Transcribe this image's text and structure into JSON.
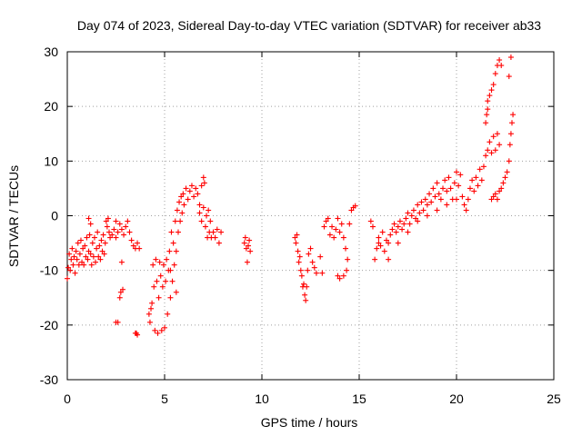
{
  "chart_data": {
    "type": "scatter",
    "title": "Day 074 of 2023, Sidereal Day-to-day VTEC variation (SDTVAR) for receiver ab33",
    "xlabel": "GPS time / hours",
    "ylabel": "SDTVAR / TECUs",
    "xlim": [
      0,
      25
    ],
    "ylim": [
      -30,
      30
    ],
    "xticks": [
      0,
      5,
      10,
      15,
      20,
      25
    ],
    "yticks": [
      -30,
      -20,
      -10,
      0,
      10,
      20,
      30
    ],
    "xtick_labels": [
      "0",
      "5",
      "10",
      "15",
      "20",
      "25"
    ],
    "ytick_labels": [
      "-30",
      "-20",
      "-10",
      "0",
      "10",
      "20",
      "30"
    ],
    "grid": true,
    "marker": "plus",
    "color": "#ff0000",
    "series": [
      {
        "name": "SDTVAR",
        "points": [
          [
            0.0,
            -11.5
          ],
          [
            0.05,
            -9.5
          ],
          [
            0.1,
            -7.0
          ],
          [
            0.15,
            -10.0
          ],
          [
            0.2,
            -8.0
          ],
          [
            0.25,
            -6.0
          ],
          [
            0.3,
            -9.0
          ],
          [
            0.35,
            -7.5
          ],
          [
            0.4,
            -10.5
          ],
          [
            0.45,
            -6.5
          ],
          [
            0.5,
            -8.0
          ],
          [
            0.55,
            -5.0
          ],
          [
            0.6,
            -9.0
          ],
          [
            0.65,
            -7.0
          ],
          [
            0.7,
            -4.5
          ],
          [
            0.75,
            -8.5
          ],
          [
            0.8,
            -6.0
          ],
          [
            0.85,
            -9.0
          ],
          [
            0.9,
            -5.5
          ],
          [
            0.95,
            -7.5
          ],
          [
            1.0,
            -4.0
          ],
          [
            1.05,
            -8.0
          ],
          [
            1.1,
            -6.5
          ],
          [
            1.15,
            -3.5
          ],
          [
            1.2,
            -7.0
          ],
          [
            1.25,
            -9.0
          ],
          [
            1.3,
            -5.0
          ],
          [
            1.35,
            -7.5
          ],
          [
            1.4,
            -4.0
          ],
          [
            1.45,
            -8.5
          ],
          [
            1.5,
            -6.0
          ],
          [
            1.55,
            -3.0
          ],
          [
            1.6,
            -7.5
          ],
          [
            1.65,
            -5.5
          ],
          [
            1.7,
            -8.0
          ],
          [
            1.75,
            -4.5
          ],
          [
            1.8,
            -6.5
          ],
          [
            1.85,
            -3.5
          ],
          [
            1.9,
            -7.0
          ],
          [
            1.95,
            -5.0
          ],
          [
            2.0,
            -1.0
          ],
          [
            2.05,
            -2.0
          ],
          [
            2.1,
            -0.5
          ],
          [
            2.15,
            -3.0
          ],
          [
            2.2,
            -4.0
          ],
          [
            2.3,
            -3.5
          ],
          [
            2.4,
            -2.5
          ],
          [
            2.5,
            -4.0
          ],
          [
            2.6,
            -3.0
          ],
          [
            2.7,
            -1.5
          ],
          [
            2.8,
            -2.5
          ],
          [
            2.9,
            -3.5
          ],
          [
            3.0,
            -2.0
          ],
          [
            3.1,
            -1.0
          ],
          [
            3.2,
            -3.0
          ],
          [
            3.3,
            -4.5
          ],
          [
            3.4,
            -5.5
          ],
          [
            3.5,
            -6.0
          ],
          [
            3.6,
            -5.0
          ],
          [
            3.7,
            -6.0
          ],
          [
            1.1,
            -0.5
          ],
          [
            1.2,
            -1.5
          ],
          [
            2.5,
            -1.0
          ],
          [
            2.5,
            -19.5
          ],
          [
            2.6,
            -19.5
          ],
          [
            2.7,
            -15.0
          ],
          [
            2.75,
            -14.0
          ],
          [
            2.8,
            -8.5
          ],
          [
            2.85,
            -13.5
          ],
          [
            3.5,
            -21.5
          ],
          [
            3.55,
            -21.5
          ],
          [
            3.6,
            -21.8
          ],
          [
            4.2,
            -18.0
          ],
          [
            4.25,
            -19.5
          ],
          [
            4.3,
            -17.0
          ],
          [
            4.35,
            -16.0
          ],
          [
            4.4,
            -9.0
          ],
          [
            4.45,
            -13.0
          ],
          [
            4.5,
            -21.0
          ],
          [
            4.55,
            -8.0
          ],
          [
            4.6,
            -12.0
          ],
          [
            4.65,
            -21.5
          ],
          [
            4.7,
            -15.0
          ],
          [
            4.75,
            -8.5
          ],
          [
            4.8,
            -11.0
          ],
          [
            4.85,
            -21.0
          ],
          [
            4.9,
            -13.0
          ],
          [
            4.95,
            -9.0
          ],
          [
            5.0,
            -20.5
          ],
          [
            5.05,
            -12.0
          ],
          [
            5.1,
            -8.0
          ],
          [
            5.15,
            -18.0
          ],
          [
            5.2,
            -10.0
          ],
          [
            5.25,
            -6.5
          ],
          [
            5.3,
            -15.0
          ],
          [
            5.35,
            -3.0
          ],
          [
            5.4,
            -12.0
          ],
          [
            5.45,
            -5.0
          ],
          [
            5.5,
            -9.0
          ],
          [
            5.55,
            -1.0
          ],
          [
            5.6,
            -6.5
          ],
          [
            5.65,
            1.0
          ],
          [
            5.7,
            -3.0
          ],
          [
            5.75,
            2.5
          ],
          [
            5.8,
            -1.0
          ],
          [
            5.85,
            3.5
          ],
          [
            5.9,
            0.5
          ],
          [
            5.95,
            4.0
          ],
          [
            6.0,
            2.0
          ],
          [
            6.1,
            5.0
          ],
          [
            6.2,
            3.0
          ],
          [
            6.3,
            4.5
          ],
          [
            6.4,
            5.5
          ],
          [
            6.5,
            3.5
          ],
          [
            6.6,
            5.0
          ],
          [
            6.7,
            4.0
          ],
          [
            6.8,
            2.0
          ],
          [
            6.9,
            5.5
          ],
          [
            7.0,
            7.0
          ],
          [
            7.05,
            6.0
          ],
          [
            7.1,
            -2.0
          ],
          [
            7.15,
            0.0
          ],
          [
            7.2,
            -4.0
          ],
          [
            7.25,
            1.0
          ],
          [
            7.3,
            -3.0
          ],
          [
            7.35,
            -1.0
          ],
          [
            7.4,
            -4.0
          ],
          [
            7.5,
            -3.0
          ],
          [
            7.6,
            -4.0
          ],
          [
            7.7,
            -2.5
          ],
          [
            7.8,
            -5.0
          ],
          [
            7.9,
            -3.0
          ],
          [
            6.8,
            0.5
          ],
          [
            6.9,
            -1.0
          ],
          [
            7.0,
            1.5
          ],
          [
            5.3,
            -10.0
          ],
          [
            5.6,
            -14.0
          ],
          [
            9.1,
            -5.0
          ],
          [
            9.15,
            -4.0
          ],
          [
            9.2,
            -6.0
          ],
          [
            9.25,
            -8.5
          ],
          [
            9.3,
            -5.5
          ],
          [
            9.35,
            -4.5
          ],
          [
            9.4,
            -6.5
          ],
          [
            11.7,
            -4.0
          ],
          [
            11.75,
            -5.0
          ],
          [
            11.8,
            -3.5
          ],
          [
            11.85,
            -6.5
          ],
          [
            11.9,
            -8.5
          ],
          [
            11.95,
            -7.5
          ],
          [
            12.0,
            -10.0
          ],
          [
            12.05,
            -11.0
          ],
          [
            12.1,
            -13.0
          ],
          [
            12.15,
            -12.5
          ],
          [
            12.2,
            -14.5
          ],
          [
            12.25,
            -15.5
          ],
          [
            12.3,
            -13.0
          ],
          [
            12.35,
            -10.0
          ],
          [
            12.4,
            -7.0
          ],
          [
            12.5,
            -6.0
          ],
          [
            12.6,
            -8.5
          ],
          [
            12.7,
            -9.5
          ],
          [
            12.8,
            -10.5
          ],
          [
            13.0,
            -7.5
          ],
          [
            13.1,
            -10.5
          ],
          [
            13.2,
            -2.0
          ],
          [
            13.3,
            -1.0
          ],
          [
            13.4,
            -0.5
          ],
          [
            13.5,
            -3.5
          ],
          [
            13.6,
            -2.0
          ],
          [
            13.7,
            -4.0
          ],
          [
            13.8,
            -2.5
          ],
          [
            13.9,
            -0.5
          ],
          [
            14.0,
            -3.0
          ],
          [
            14.1,
            -1.5
          ],
          [
            14.2,
            -4.0
          ],
          [
            14.3,
            -6.0
          ],
          [
            14.35,
            -10.0
          ],
          [
            14.4,
            -8.0
          ],
          [
            14.5,
            -1.5
          ],
          [
            14.6,
            1.0
          ],
          [
            14.7,
            1.5
          ],
          [
            14.8,
            1.8
          ],
          [
            13.9,
            -11.0
          ],
          [
            14.0,
            -11.5
          ],
          [
            14.2,
            -11.0
          ],
          [
            15.6,
            -1.0
          ],
          [
            15.7,
            -2.0
          ],
          [
            15.8,
            -8.0
          ],
          [
            15.9,
            -6.0
          ],
          [
            16.0,
            -4.0
          ],
          [
            16.1,
            -5.5
          ],
          [
            16.2,
            -3.0
          ],
          [
            16.3,
            -6.5
          ],
          [
            16.4,
            -4.5
          ],
          [
            16.5,
            -5.0
          ],
          [
            16.6,
            -3.5
          ],
          [
            16.7,
            -2.5
          ],
          [
            16.8,
            -1.5
          ],
          [
            16.9,
            -3.0
          ],
          [
            17.0,
            -2.0
          ],
          [
            17.1,
            -1.0
          ],
          [
            17.2,
            -2.5
          ],
          [
            17.3,
            -1.5
          ],
          [
            17.4,
            -0.5
          ],
          [
            17.5,
            0.5
          ],
          [
            17.6,
            -1.5
          ],
          [
            17.7,
            0.0
          ],
          [
            17.8,
            1.0
          ],
          [
            17.9,
            -0.5
          ],
          [
            18.0,
            2.0
          ],
          [
            18.1,
            0.5
          ],
          [
            18.2,
            2.5
          ],
          [
            18.3,
            1.0
          ],
          [
            18.4,
            3.0
          ],
          [
            18.5,
            2.0
          ],
          [
            18.6,
            4.0
          ],
          [
            18.7,
            2.5
          ],
          [
            18.8,
            5.0
          ],
          [
            18.9,
            3.5
          ],
          [
            19.0,
            6.0
          ],
          [
            19.1,
            4.0
          ],
          [
            19.2,
            3.0
          ],
          [
            19.3,
            5.0
          ],
          [
            19.4,
            6.5
          ],
          [
            19.5,
            4.5
          ],
          [
            19.6,
            7.0
          ],
          [
            19.7,
            5.0
          ],
          [
            19.8,
            3.0
          ],
          [
            19.9,
            6.0
          ],
          [
            20.0,
            8.0
          ],
          [
            20.1,
            5.5
          ],
          [
            20.2,
            7.5
          ],
          [
            20.3,
            3.5
          ],
          [
            20.4,
            2.0
          ],
          [
            20.5,
            1.0
          ],
          [
            20.6,
            3.0
          ],
          [
            20.7,
            5.0
          ],
          [
            20.8,
            6.5
          ],
          [
            20.9,
            4.5
          ],
          [
            21.0,
            7.0
          ],
          [
            21.1,
            5.5
          ],
          [
            21.2,
            8.5
          ],
          [
            21.3,
            6.5
          ],
          [
            21.4,
            9.0
          ],
          [
            21.5,
            11.0
          ],
          [
            21.6,
            12.0
          ],
          [
            21.7,
            13.5
          ],
          [
            21.8,
            11.5
          ],
          [
            21.9,
            14.5
          ],
          [
            22.0,
            12.0
          ],
          [
            22.1,
            15.0
          ],
          [
            22.2,
            13.0
          ],
          [
            21.6,
            21.0
          ],
          [
            21.7,
            22.0
          ],
          [
            21.8,
            23.0
          ],
          [
            21.9,
            24.0
          ],
          [
            22.0,
            26.0
          ],
          [
            22.1,
            27.5
          ],
          [
            22.2,
            28.5
          ],
          [
            22.3,
            27.5
          ],
          [
            21.5,
            17.0
          ],
          [
            21.55,
            18.5
          ],
          [
            21.6,
            19.5
          ],
          [
            21.8,
            3.0
          ],
          [
            21.9,
            3.5
          ],
          [
            22.0,
            4.0
          ],
          [
            22.1,
            3.0
          ],
          [
            22.2,
            4.5
          ],
          [
            22.3,
            5.0
          ],
          [
            22.4,
            6.0
          ],
          [
            22.5,
            7.0
          ],
          [
            22.6,
            8.0
          ],
          [
            22.7,
            10.0
          ],
          [
            22.75,
            13.0
          ],
          [
            22.8,
            15.0
          ],
          [
            22.85,
            17.0
          ],
          [
            22.9,
            18.5
          ],
          [
            22.7,
            25.5
          ],
          [
            22.8,
            29.0
          ],
          [
            16.0,
            -5.0
          ],
          [
            16.5,
            -8.0
          ],
          [
            17.0,
            -5.0
          ],
          [
            17.5,
            -3.0
          ],
          [
            18.0,
            -1.0
          ],
          [
            18.5,
            0.0
          ],
          [
            19.0,
            1.0
          ],
          [
            19.5,
            2.0
          ],
          [
            20.0,
            3.0
          ]
        ]
      }
    ]
  }
}
